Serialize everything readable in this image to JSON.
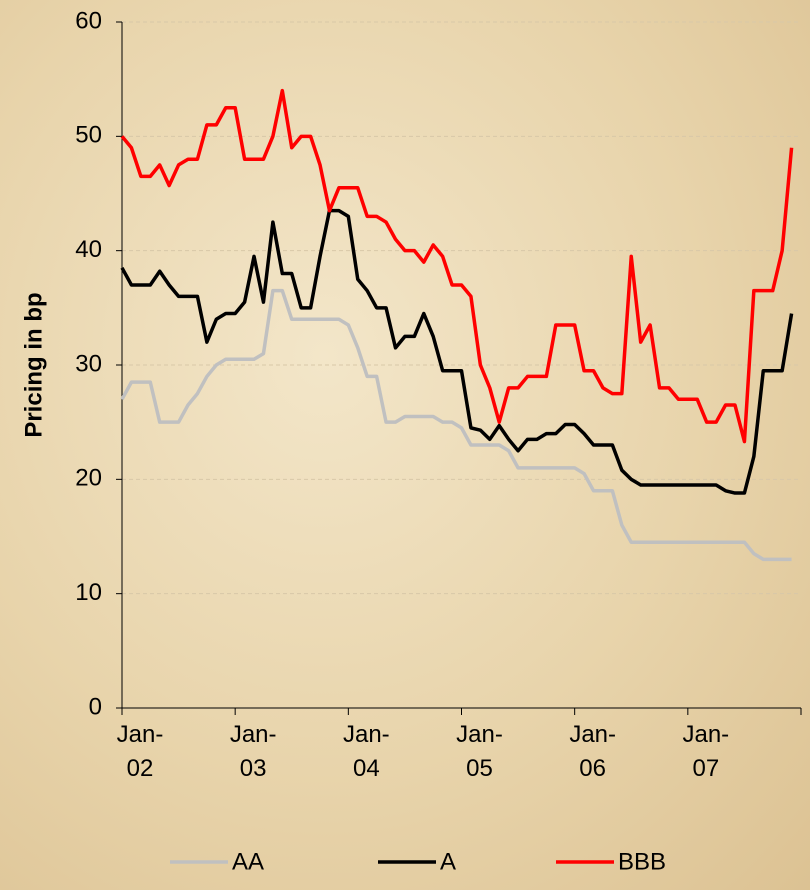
{
  "chart_data": {
    "type": "line",
    "ylabel": "Pricing in bp",
    "categories": [
      "Jan-02",
      null,
      null,
      null,
      null,
      null,
      null,
      null,
      null,
      null,
      null,
      null,
      "Jan-03",
      null,
      null,
      null,
      null,
      null,
      null,
      null,
      null,
      null,
      null,
      null,
      "Jan-04",
      null,
      null,
      null,
      null,
      null,
      null,
      null,
      null,
      null,
      null,
      null,
      "Jan-05",
      null,
      null,
      null,
      null,
      null,
      null,
      null,
      null,
      null,
      null,
      null,
      "Jan-06",
      null,
      null,
      null,
      null,
      null,
      null,
      null,
      null,
      null,
      null,
      null,
      "Jan-07",
      null,
      null,
      null,
      null,
      null,
      null,
      null,
      null,
      null,
      null,
      null
    ],
    "series": [
      {
        "name": "AA",
        "color": "#c0c0c0",
        "values": [
          27,
          28.5,
          28.5,
          28.5,
          25,
          25,
          25,
          26.5,
          27.5,
          29,
          30,
          30.5,
          30.5,
          30.5,
          30.5,
          31,
          36.5,
          36.5,
          34,
          34,
          34,
          34,
          34,
          34,
          33.5,
          31.5,
          29,
          29,
          25,
          25,
          25.5,
          25.5,
          25.5,
          25.5,
          25,
          25,
          24.5,
          23,
          23,
          23,
          23,
          22.5,
          21,
          21,
          21,
          21,
          21,
          21,
          21,
          20.5,
          19,
          19,
          19,
          16,
          14.5,
          14.5,
          14.5,
          14.5,
          14.5,
          14.5,
          14.5,
          14.5,
          14.5,
          14.5,
          14.5,
          14.5,
          14.5,
          13.5,
          13,
          13,
          13,
          13
        ]
      },
      {
        "name": "A",
        "color": "#000000",
        "values": [
          38.5,
          37,
          37,
          37,
          38.2,
          37,
          36,
          36,
          36,
          32,
          34,
          34.5,
          34.5,
          35.5,
          39.5,
          35.5,
          42.5,
          38,
          38,
          35,
          35,
          39.5,
          43.5,
          43.5,
          43,
          37.5,
          36.5,
          35,
          35,
          31.5,
          32.5,
          32.5,
          34.5,
          32.5,
          29.5,
          29.5,
          29.5,
          24.5,
          24.3,
          23.5,
          24.7,
          23.5,
          22.5,
          23.5,
          23.5,
          24,
          24,
          24.8,
          24.8,
          24,
          23,
          23,
          23,
          20.8,
          20,
          19.5,
          19.5,
          19.5,
          19.5,
          19.5,
          19.5,
          19.5,
          19.5,
          19.5,
          19,
          18.8,
          18.8,
          22,
          29.5,
          29.5,
          29.5,
          34.5
        ]
      },
      {
        "name": "BBB",
        "color": "#ff0000",
        "values": [
          50,
          49,
          46.5,
          46.5,
          47.5,
          45.7,
          47.5,
          48,
          48,
          51,
          51,
          52.5,
          52.5,
          48,
          48,
          48,
          50,
          54,
          49,
          50,
          50,
          47.5,
          43.5,
          45.5,
          45.5,
          45.5,
          43,
          43,
          42.5,
          41,
          40,
          40,
          39,
          40.5,
          39.5,
          37,
          37,
          36,
          30,
          28,
          25,
          28,
          28,
          29,
          29,
          29,
          33.5,
          33.5,
          33.5,
          29.5,
          29.5,
          28,
          27.5,
          27.5,
          39.5,
          32,
          33.5,
          28,
          28,
          27,
          27,
          27,
          25,
          25,
          26.5,
          26.5,
          23.3,
          36.5,
          36.5,
          36.5,
          40,
          49
        ]
      }
    ],
    "ylim": [
      0,
      60
    ],
    "yticks": [
      0,
      10,
      20,
      30,
      40,
      50,
      60
    ],
    "grid": true
  }
}
